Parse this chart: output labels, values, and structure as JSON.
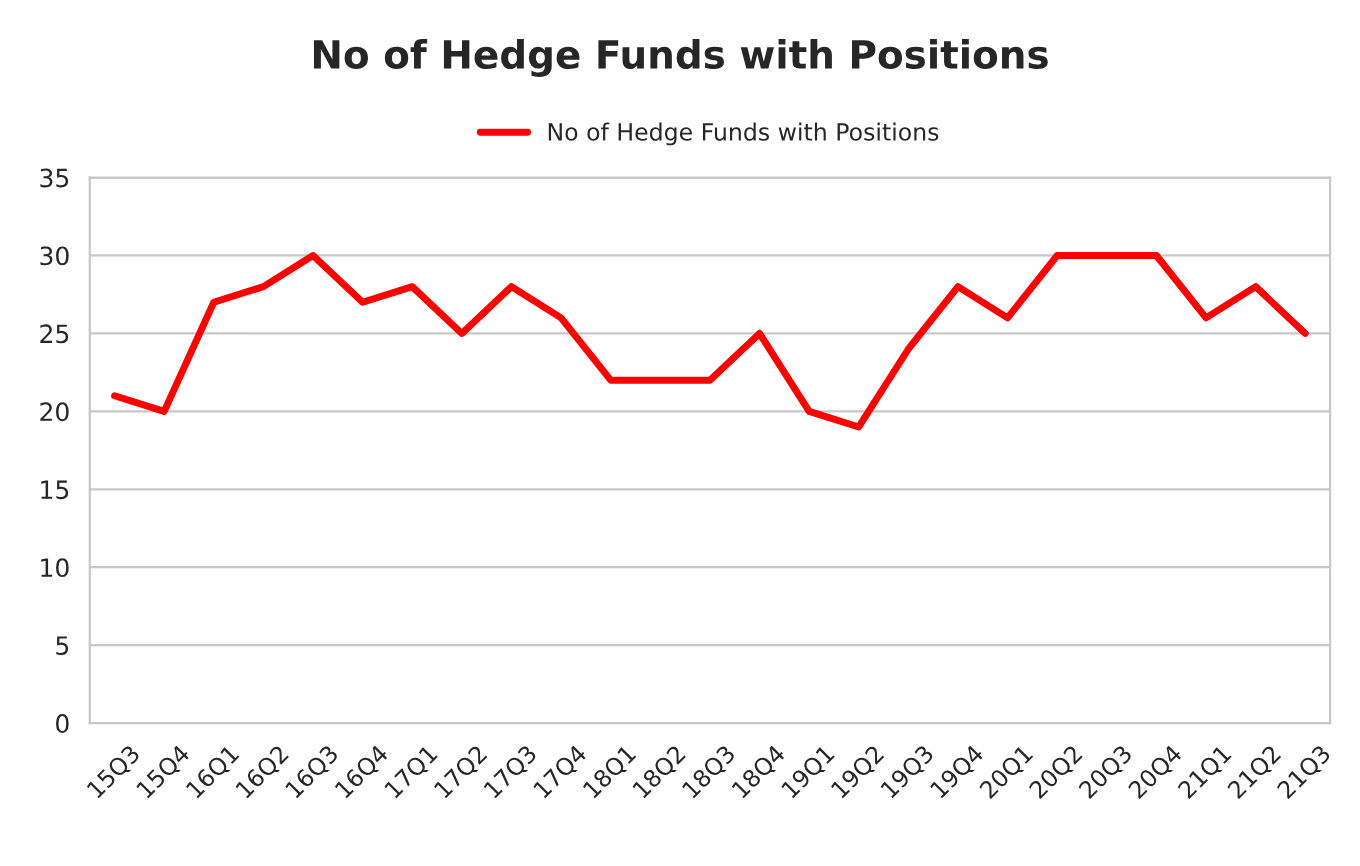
{
  "chart_data": {
    "type": "line",
    "title": "No of Hedge Funds with Positions",
    "categories": [
      "15Q3",
      "15Q4",
      "16Q1",
      "16Q2",
      "16Q3",
      "16Q4",
      "17Q1",
      "17Q2",
      "17Q3",
      "17Q4",
      "18Q1",
      "18Q2",
      "18Q3",
      "18Q4",
      "19Q1",
      "19Q2",
      "19Q3",
      "19Q4",
      "20Q1",
      "20Q2",
      "20Q3",
      "20Q4",
      "21Q1",
      "21Q2",
      "21Q3"
    ],
    "series": [
      {
        "name": "No of Hedge Funds with Positions",
        "color": "#ff0000",
        "values": [
          21,
          20,
          27,
          28,
          30,
          27,
          28,
          25,
          28,
          26,
          22,
          22,
          22,
          25,
          20,
          19,
          24,
          28,
          26,
          30,
          30,
          30,
          26,
          28,
          25
        ]
      }
    ],
    "ylim": [
      0,
      35
    ],
    "yticks": [
      0,
      5,
      10,
      15,
      20,
      25,
      30,
      35
    ],
    "grid": "y",
    "legend": "top",
    "marker": "none",
    "line_style": "solid"
  }
}
